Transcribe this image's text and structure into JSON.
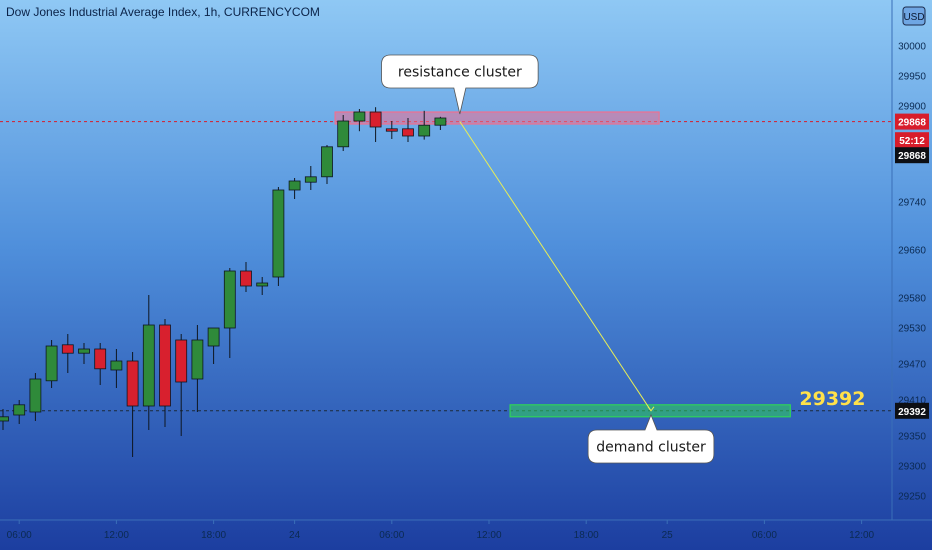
{
  "header": {
    "title": "Dow Jones Industrial Average Index, 1h, CURRENCYCOM",
    "currency": "USD"
  },
  "chart_data": {
    "type": "candlestick",
    "title": "Dow Jones Industrial Average Index, 1h, CURRENCYCOM",
    "ylim": [
      29210,
      30030
    ],
    "y_ticks": [
      30000,
      29950,
      29900,
      29740,
      29660,
      29580,
      29530,
      29470,
      29410,
      29350,
      29300,
      29250
    ],
    "x_ticks": [
      "06:00",
      "12:00",
      "18:00",
      "24",
      "06:00",
      "12:00",
      "18:00",
      "25",
      "06:00",
      "12:00"
    ],
    "x_tick_index": [
      1,
      7,
      13,
      18,
      24,
      30,
      36,
      41,
      47,
      53
    ],
    "candles": [
      {
        "o": 29375,
        "h": 29395,
        "l": 29360,
        "c": 29382
      },
      {
        "o": 29385,
        "h": 29410,
        "l": 29370,
        "c": 29402
      },
      {
        "o": 29390,
        "h": 29455,
        "l": 29375,
        "c": 29445
      },
      {
        "o": 29442,
        "h": 29510,
        "l": 29430,
        "c": 29500
      },
      {
        "o": 29502,
        "h": 29520,
        "l": 29455,
        "c": 29488
      },
      {
        "o": 29488,
        "h": 29505,
        "l": 29470,
        "c": 29495
      },
      {
        "o": 29495,
        "h": 29505,
        "l": 29435,
        "c": 29462
      },
      {
        "o": 29460,
        "h": 29495,
        "l": 29430,
        "c": 29475
      },
      {
        "o": 29475,
        "h": 29490,
        "l": 29315,
        "c": 29400
      },
      {
        "o": 29400,
        "h": 29585,
        "l": 29360,
        "c": 29535
      },
      {
        "o": 29535,
        "h": 29545,
        "l": 29365,
        "c": 29400
      },
      {
        "o": 29510,
        "h": 29520,
        "l": 29350,
        "c": 29440
      },
      {
        "o": 29445,
        "h": 29535,
        "l": 29390,
        "c": 29510
      },
      {
        "o": 29500,
        "h": 29530,
        "l": 29470,
        "c": 29530
      },
      {
        "o": 29530,
        "h": 29630,
        "l": 29480,
        "c": 29625
      },
      {
        "o": 29625,
        "h": 29640,
        "l": 29590,
        "c": 29600
      },
      {
        "o": 29600,
        "h": 29615,
        "l": 29585,
        "c": 29605
      },
      {
        "o": 29615,
        "h": 29765,
        "l": 29600,
        "c": 29760
      },
      {
        "o": 29760,
        "h": 29780,
        "l": 29745,
        "c": 29775
      },
      {
        "o": 29773,
        "h": 29800,
        "l": 29760,
        "c": 29782
      },
      {
        "o": 29782,
        "h": 29835,
        "l": 29770,
        "c": 29832
      },
      {
        "o": 29832,
        "h": 29885,
        "l": 29825,
        "c": 29875
      },
      {
        "o": 29875,
        "h": 29895,
        "l": 29858,
        "c": 29890
      },
      {
        "o": 29890,
        "h": 29898,
        "l": 29840,
        "c": 29865
      },
      {
        "o": 29862,
        "h": 29875,
        "l": 29845,
        "c": 29858
      },
      {
        "o": 29862,
        "h": 29880,
        "l": 29840,
        "c": 29850
      },
      {
        "o": 29850,
        "h": 29892,
        "l": 29844,
        "c": 29868
      },
      {
        "o": 29868,
        "h": 29882,
        "l": 29860,
        "c": 29880
      }
    ],
    "zones": [
      {
        "name": "resistance cluster",
        "price": 29880,
        "height": 12,
        "start_index": 20.5,
        "end_index": 40.5,
        "color": "#f07090"
      },
      {
        "name": "demand cluster",
        "price": 29392,
        "height": 12,
        "start_index": 31.3,
        "end_index": 48.6,
        "color": "#2fd35a"
      }
    ],
    "projection": {
      "from_index": 28.2,
      "from_price": 29874,
      "to_index": 40,
      "to_price": 29392,
      "color": "#e8ee55"
    },
    "price_lines": [
      {
        "price": 29874,
        "label": "29868",
        "color": "#d81c2a"
      },
      {
        "price": 29392,
        "label": "29392",
        "color": "#1b2a3a"
      }
    ],
    "badges": [
      {
        "price": 29874,
        "label": "29868",
        "color": "#d81c2a"
      },
      {
        "price": 29843,
        "label": "52:12",
        "color": "#d81c2a"
      },
      {
        "price": 29818,
        "label": "29868",
        "color": "#0d0f14"
      },
      {
        "price": 29392,
        "label": "29392",
        "color": "#0d0f14"
      }
    ],
    "big_label": {
      "text": "29392",
      "price": 29413,
      "index": 51.2
    },
    "callouts": [
      {
        "text": "resistance cluster",
        "anchor_index": 28.2,
        "anchor_price": 29880,
        "box_price_top": 29985,
        "box_price_bottom": 29930,
        "box_center_index": 28.2
      },
      {
        "text": "demand cluster",
        "anchor_index": 40,
        "anchor_price": 29392,
        "box_price_top": 29360,
        "box_price_bottom": 29305,
        "box_center_index": 40
      }
    ],
    "colors": {
      "up": "#2f8a3a",
      "down": "#d8202e",
      "wick": "#0e1620",
      "border": "#0e1620"
    }
  }
}
